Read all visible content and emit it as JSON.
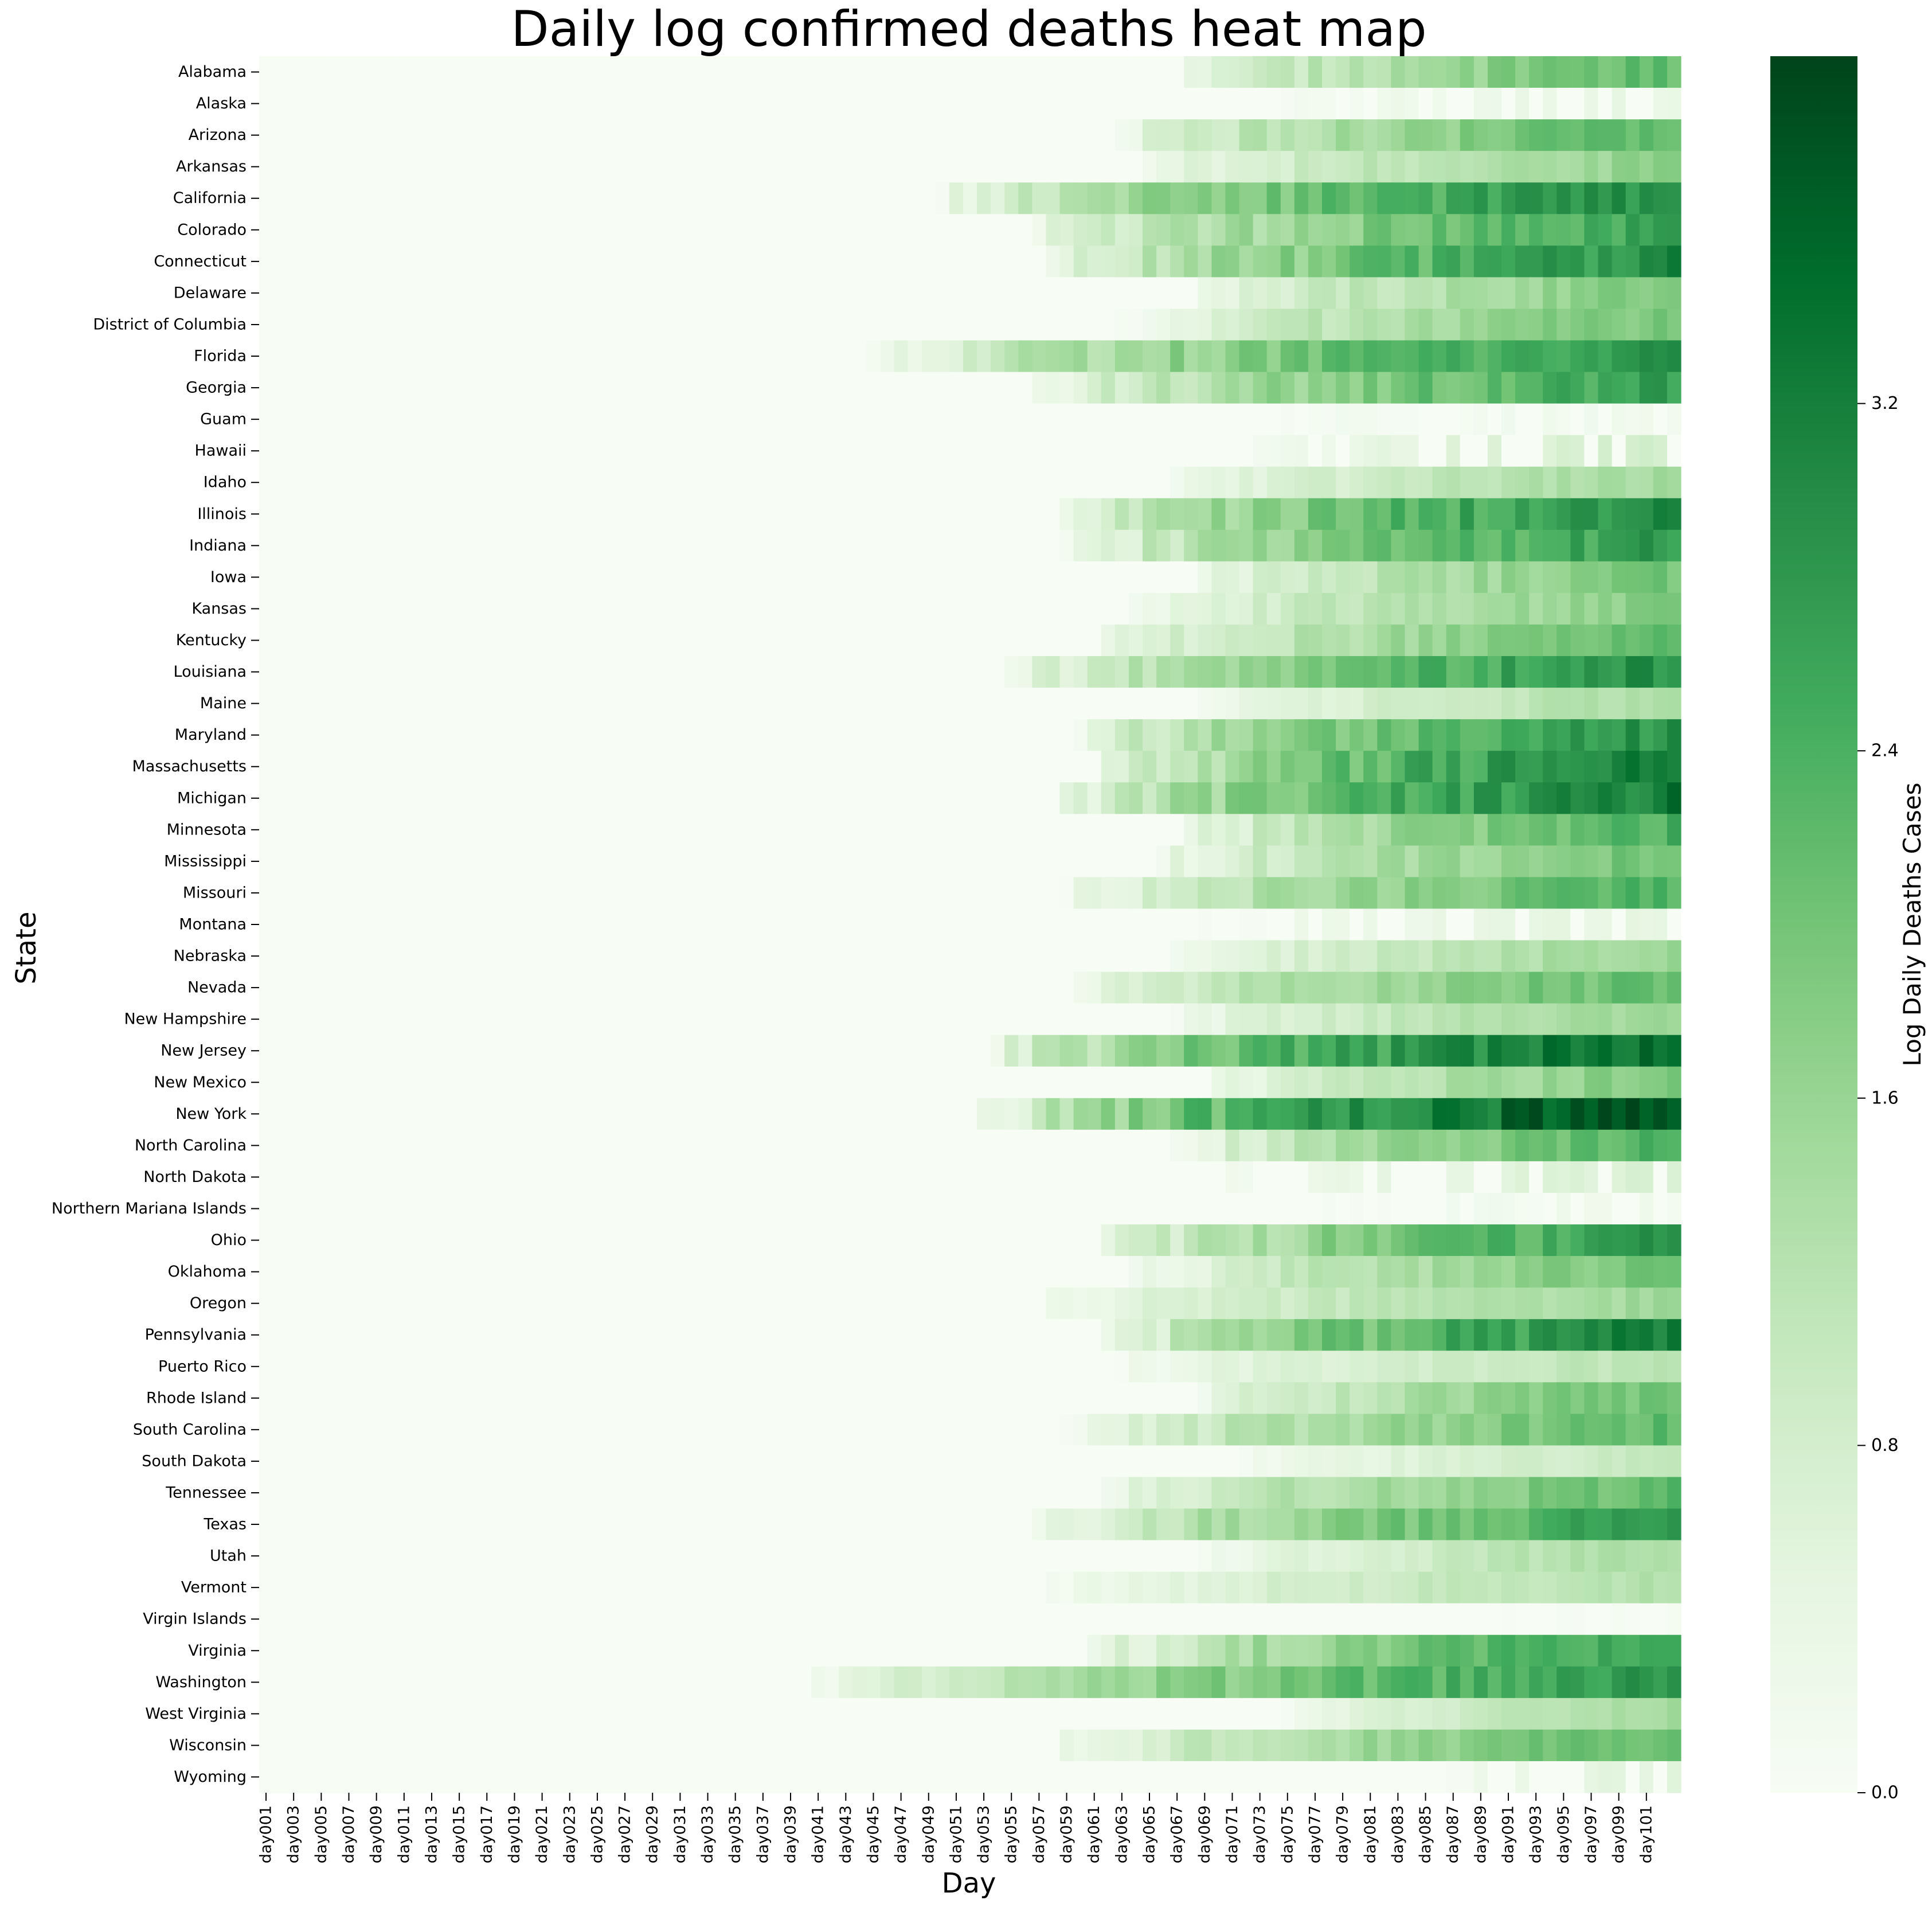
{
  "chart_data": {
    "type": "heatmap",
    "title": "Daily log confirmed deaths heat map",
    "xlabel": "Day",
    "ylabel": "State",
    "colorbar_label": "Log Daily Deaths Cases",
    "colorbar_ticks": [
      0.0,
      0.8,
      1.6,
      2.4,
      3.2
    ],
    "colorbar_tick_labels": [
      "0.0",
      "0.8",
      "1.6",
      "2.4",
      "3.2"
    ],
    "value_range": [
      0.0,
      4.0
    ],
    "colormap": [
      "#f7fcf5",
      "#e5f5e0",
      "#c7e9c0",
      "#a1d99b",
      "#74c476",
      "#41ab5d",
      "#238b45",
      "#006d2c",
      "#00441b"
    ],
    "num_days": 103,
    "x_tick_labels": [
      "day001",
      "day003",
      "day005",
      "day007",
      "day009",
      "day011",
      "day013",
      "day015",
      "day017",
      "day019",
      "day021",
      "day023",
      "day025",
      "day027",
      "day029",
      "day031",
      "day033",
      "day035",
      "day037",
      "day039",
      "day041",
      "day043",
      "day045",
      "day047",
      "day049",
      "day051",
      "day053",
      "day055",
      "day057",
      "day059",
      "day061",
      "day063",
      "day065",
      "day067",
      "day069",
      "day071",
      "day073",
      "day075",
      "day077",
      "day079",
      "day081",
      "day083",
      "day085",
      "day087",
      "day089",
      "day091",
      "day093",
      "day095",
      "day097",
      "day099",
      "day101"
    ],
    "states": [
      {
        "name": "Alabama",
        "start": 67,
        "end": 2.2
      },
      {
        "name": "Alaska",
        "start": 75,
        "end": 0.4
      },
      {
        "name": "Arizona",
        "start": 62,
        "end": 2.3
      },
      {
        "name": "Arkansas",
        "start": 64,
        "end": 1.7
      },
      {
        "name": "California",
        "start": 49,
        "end": 3.0
      },
      {
        "name": "Colorado",
        "start": 56,
        "end": 2.6
      },
      {
        "name": "Connecticut",
        "start": 58,
        "end": 3.0
      },
      {
        "name": "Delaware",
        "start": 68,
        "end": 1.9
      },
      {
        "name": "District of Columbia",
        "start": 63,
        "end": 2.0
      },
      {
        "name": "Florida",
        "start": 45,
        "end": 2.8
      },
      {
        "name": "Georgia",
        "start": 57,
        "end": 2.7
      },
      {
        "name": "Guam",
        "start": 71,
        "end": 0.2
      },
      {
        "name": "Hawaii",
        "start": 72,
        "end": 0.8
      },
      {
        "name": "Idaho",
        "start": 67,
        "end": 1.5
      },
      {
        "name": "Illinois",
        "start": 58,
        "end": 3.1
      },
      {
        "name": "Indiana",
        "start": 59,
        "end": 2.8
      },
      {
        "name": "Iowa",
        "start": 68,
        "end": 2.0
      },
      {
        "name": "Kansas",
        "start": 64,
        "end": 1.8
      },
      {
        "name": "Kentucky",
        "start": 61,
        "end": 2.1
      },
      {
        "name": "Louisiana",
        "start": 55,
        "end": 3.0
      },
      {
        "name": "Maine",
        "start": 69,
        "end": 1.4
      },
      {
        "name": "Maryland",
        "start": 59,
        "end": 2.9
      },
      {
        "name": "Massachusetts",
        "start": 61,
        "end": 3.3
      },
      {
        "name": "Michigan",
        "start": 58,
        "end": 3.3
      },
      {
        "name": "Minnesota",
        "start": 67,
        "end": 2.4
      },
      {
        "name": "Mississippi",
        "start": 65,
        "end": 2.1
      },
      {
        "name": "Missouri",
        "start": 59,
        "end": 2.4
      },
      {
        "name": "Montana",
        "start": 69,
        "end": 0.5
      },
      {
        "name": "Nebraska",
        "start": 67,
        "end": 1.6
      },
      {
        "name": "Nevada",
        "start": 59,
        "end": 2.2
      },
      {
        "name": "New Hampshire",
        "start": 67,
        "end": 1.6
      },
      {
        "name": "New Jersey",
        "start": 53,
        "end": 3.6
      },
      {
        "name": "New Mexico",
        "start": 69,
        "end": 1.9
      },
      {
        "name": "New York",
        "start": 53,
        "end": 4.0
      },
      {
        "name": "North Carolina",
        "start": 67,
        "end": 2.4
      },
      {
        "name": "North Dakota",
        "start": 69,
        "end": 0.7
      },
      {
        "name": "Northern Mariana Islands",
        "start": 78,
        "end": 0.2
      },
      {
        "name": "Ohio",
        "start": 61,
        "end": 2.8
      },
      {
        "name": "Oklahoma",
        "start": 64,
        "end": 2.0
      },
      {
        "name": "Oregon",
        "start": 57,
        "end": 1.5
      },
      {
        "name": "Pennsylvania",
        "start": 62,
        "end": 3.2
      },
      {
        "name": "Puerto Rico",
        "start": 63,
        "end": 1.2
      },
      {
        "name": "Rhode Island",
        "start": 68,
        "end": 2.1
      },
      {
        "name": "South Carolina",
        "start": 59,
        "end": 2.2
      },
      {
        "name": "South Dakota",
        "start": 72,
        "end": 1.0
      },
      {
        "name": "Tennessee",
        "start": 61,
        "end": 2.2
      },
      {
        "name": "Texas",
        "start": 57,
        "end": 2.7
      },
      {
        "name": "Utah",
        "start": 69,
        "end": 1.4
      },
      {
        "name": "Vermont",
        "start": 58,
        "end": 1.3
      },
      {
        "name": "Virgin Islands",
        "start": 88,
        "end": 0.1
      },
      {
        "name": "Virginia",
        "start": 61,
        "end": 2.8
      },
      {
        "name": "Washington",
        "start": 41,
        "end": 2.8
      },
      {
        "name": "West Virginia",
        "start": 75,
        "end": 1.4
      },
      {
        "name": "Wisconsin",
        "start": 58,
        "end": 2.2
      },
      {
        "name": "Wyoming",
        "start": 87,
        "end": 0.6
      }
    ]
  }
}
